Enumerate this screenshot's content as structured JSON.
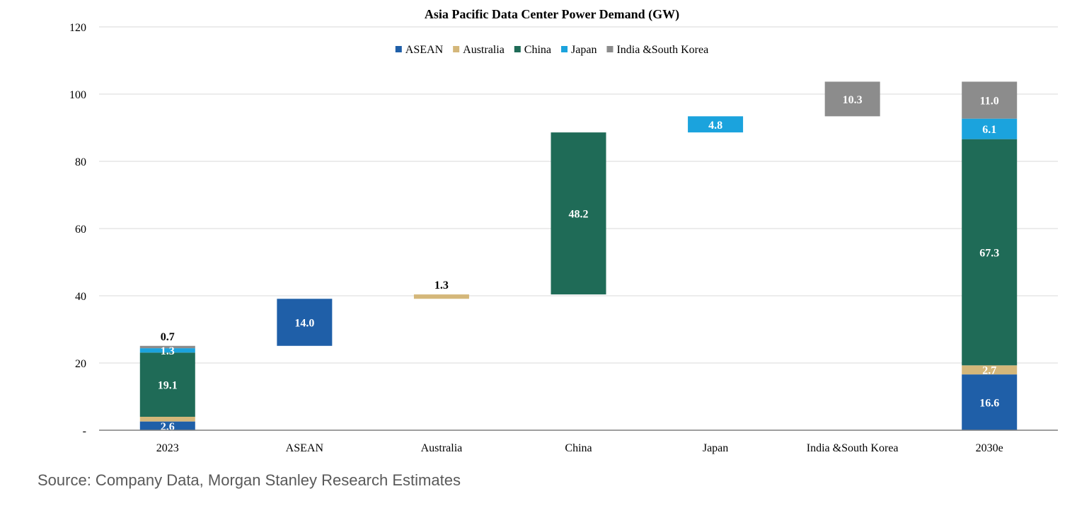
{
  "chart_data": {
    "type": "bar",
    "subtype": "waterfall",
    "title": "Asia Pacific Data Center Power Demand (GW)",
    "xlabel": "",
    "ylabel": "",
    "ylim": [
      0,
      120
    ],
    "yticks": [
      {
        "value": 0,
        "label": "-"
      },
      {
        "value": 20,
        "label": "20"
      },
      {
        "value": 40,
        "label": "40"
      },
      {
        "value": 60,
        "label": "60"
      },
      {
        "value": 80,
        "label": "80"
      },
      {
        "value": 100,
        "label": "100"
      },
      {
        "value": 120,
        "label": "120"
      }
    ],
    "grid": true,
    "legend_position": "top-center",
    "categories": [
      "2023",
      "ASEAN",
      "Australia",
      "China",
      "Japan",
      "India &South Korea",
      "2030e"
    ],
    "series": [
      {
        "name": "ASEAN",
        "color": "#1f5fa8",
        "label_color": "#ffffff"
      },
      {
        "name": "Australia",
        "color": "#d4b77a",
        "label_color": "#ffffff"
      },
      {
        "name": "China",
        "color": "#1f6b57",
        "label_color": "#ffffff"
      },
      {
        "name": "Japan",
        "color": "#1ba3dd",
        "label_color": "#ffffff"
      },
      {
        "name": "India &South Korea",
        "color": "#8c8c8c",
        "label_color": "#ffffff"
      }
    ],
    "segments": [
      {
        "category": "2023",
        "series": "ASEAN",
        "start": 0,
        "value": 2.6,
        "label": "2.6"
      },
      {
        "category": "2023",
        "series": "Australia",
        "start": 2.6,
        "value": 1.4,
        "label": ""
      },
      {
        "category": "2023",
        "series": "China",
        "start": 4.0,
        "value": 19.1,
        "label": "19.1"
      },
      {
        "category": "2023",
        "series": "Japan",
        "start": 23.1,
        "value": 1.3,
        "label": "1.3"
      },
      {
        "category": "2023",
        "series": "India &South Korea",
        "start": 24.4,
        "value": 0.7,
        "label": "0.7",
        "label_outside": true
      },
      {
        "category": "ASEAN",
        "series": "ASEAN",
        "start": 25.1,
        "value": 14.0,
        "label": "14.0"
      },
      {
        "category": "Australia",
        "series": "Australia",
        "start": 39.1,
        "value": 1.3,
        "label": "1.3",
        "label_outside": true
      },
      {
        "category": "China",
        "series": "China",
        "start": 40.4,
        "value": 48.2,
        "label": "48.2"
      },
      {
        "category": "Japan",
        "series": "Japan",
        "start": 88.6,
        "value": 4.8,
        "label": "4.8"
      },
      {
        "category": "India &South Korea",
        "series": "India &South Korea",
        "start": 93.4,
        "value": 10.3,
        "label": "10.3"
      },
      {
        "category": "2030e",
        "series": "ASEAN",
        "start": 0,
        "value": 16.6,
        "label": "16.6"
      },
      {
        "category": "2030e",
        "series": "Australia",
        "start": 16.6,
        "value": 2.7,
        "label": "2.7"
      },
      {
        "category": "2030e",
        "series": "China",
        "start": 19.3,
        "value": 67.3,
        "label": "67.3"
      },
      {
        "category": "2030e",
        "series": "Japan",
        "start": 86.6,
        "value": 6.1,
        "label": "6.1"
      },
      {
        "category": "2030e",
        "series": "India &South Korea",
        "start": 92.7,
        "value": 11.0,
        "label": "11.0"
      }
    ]
  },
  "footer": {
    "source": "Source: Company Data, Morgan Stanley Research Estimates"
  }
}
